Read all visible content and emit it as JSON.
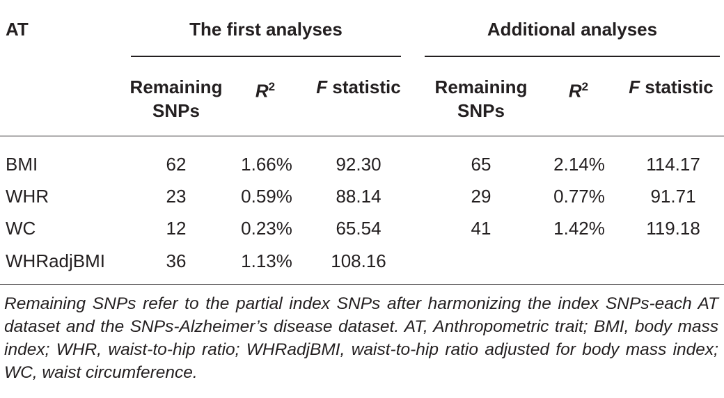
{
  "table": {
    "corner_label": "AT",
    "groups": [
      "The first analyses",
      "Additional analyses"
    ],
    "subheaders": {
      "remaining": [
        "Remaining",
        "SNPs"
      ],
      "r2_letter": "R",
      "r2_exp": "2",
      "f_letter": "F",
      "f_word": "statistic"
    },
    "rows": [
      {
        "trait": "BMI",
        "first": {
          "snps": "62",
          "r2": "1.66%",
          "f": "92.30"
        },
        "additional": {
          "snps": "65",
          "r2": "2.14%",
          "f": "114.17"
        }
      },
      {
        "trait": "WHR",
        "first": {
          "snps": "23",
          "r2": "0.59%",
          "f": "88.14"
        },
        "additional": {
          "snps": "29",
          "r2": "0.77%",
          "f": "91.71"
        }
      },
      {
        "trait": "WC",
        "first": {
          "snps": "12",
          "r2": "0.23%",
          "f": "65.54"
        },
        "additional": {
          "snps": "41",
          "r2": "1.42%",
          "f": "119.18"
        }
      },
      {
        "trait": "WHRadjBMI",
        "first": {
          "snps": "36",
          "r2": "1.13%",
          "f": "108.16"
        },
        "additional": {
          "snps": "",
          "r2": "",
          "f": ""
        }
      }
    ],
    "footnote": "Remaining SNPs refer to the partial index SNPs after harmonizing the index SNPs-each AT dataset and the SNPs-Alzheimer’s disease dataset. AT, Anthropometric trait; BMI, body mass index; WHR, waist-to-hip ratio; WHRadjBMI, waist-to-hip ratio adjusted for body mass index; WC, waist circumference."
  }
}
